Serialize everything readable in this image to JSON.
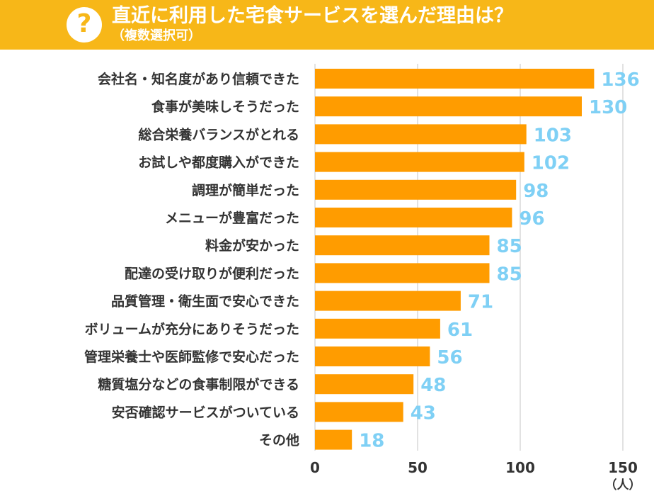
{
  "header": {
    "title": "直近に利用した宅食サービスを選んだ理由は？",
    "subtitle": "（複数選択可）",
    "icon": "question-mark-icon",
    "icon_glyph": "?"
  },
  "colors": {
    "header_bg": "#f7b718",
    "bar": "#ff9c00",
    "value_text": "#7fd0f5",
    "grid": "#d9d9d9"
  },
  "chart_data": {
    "type": "bar",
    "orientation": "horizontal",
    "categories": [
      "会社名・知名度があり信頼できた",
      "食事が美味しそうだった",
      "総合栄養バランスがとれる",
      "お試しや都度購入ができた",
      "調理が簡単だった",
      "メニューが豊富だった",
      "料金が安かった",
      "配達の受け取りが便利だった",
      "品質管理・衛生面で安心できた",
      "ボリュームが充分にありそうだった",
      "管理栄養士や医師監修で安心だった",
      "糖質塩分などの食事制限ができる",
      "安否確認サービスがついている",
      "その他"
    ],
    "values": [
      136,
      130,
      103,
      102,
      98,
      96,
      85,
      85,
      71,
      61,
      56,
      48,
      43,
      18
    ],
    "xlim": [
      0,
      150
    ],
    "xticks": [
      0,
      50,
      100,
      150
    ],
    "unit": "（人）",
    "grid": true
  }
}
